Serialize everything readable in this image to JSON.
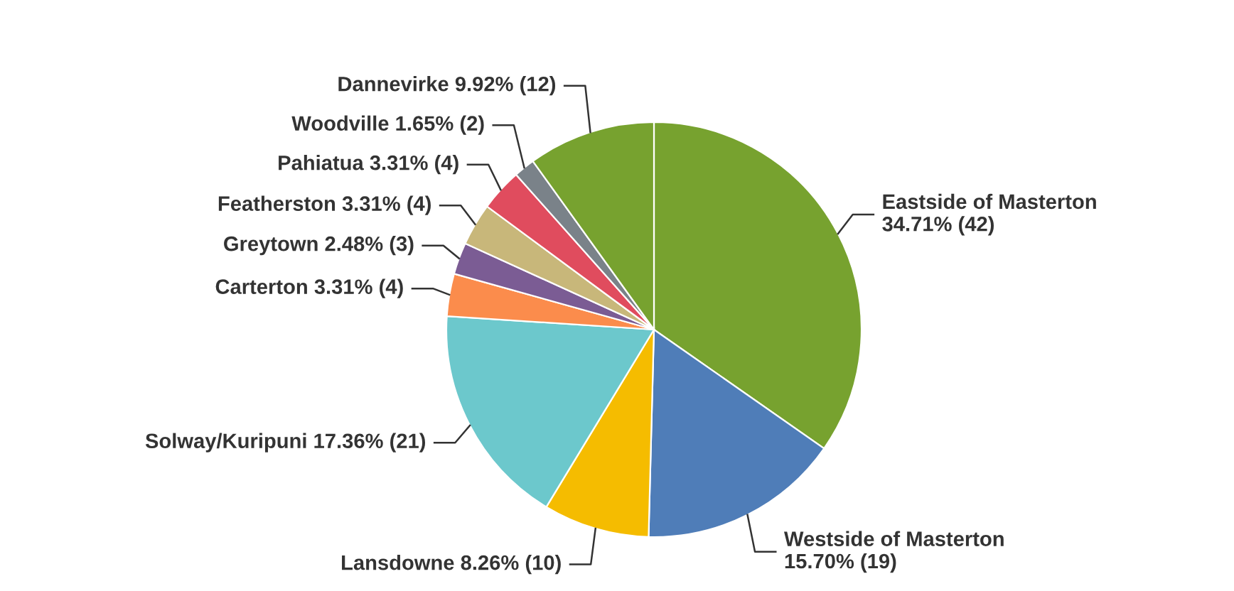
{
  "chart_data": {
    "type": "pie",
    "categories": [
      "Eastside of Masterton",
      "Westside of Masterton",
      "Lansdowne",
      "Solway/Kuripuni",
      "Carterton",
      "Greytown",
      "Featherston",
      "Pahiatua",
      "Woodville",
      "Dannevirke"
    ],
    "values": [
      42,
      19,
      10,
      21,
      4,
      3,
      4,
      4,
      2,
      12
    ],
    "value_labels": [
      "34.71% (42)",
      "15.70% (19)",
      "8.26% (10)",
      "17.36% (21)",
      "3.31% (4)",
      "2.48% (3)",
      "3.31% (4)",
      "3.31% (4)",
      "1.65% (2)",
      "9.92% (12)"
    ],
    "colors": [
      "#77a22f",
      "#4f7db8",
      "#f5bc00",
      "#6cc8cc",
      "#fb8c4c",
      "#7b5c94",
      "#c8b77a",
      "#e04c5e",
      "#7a8289",
      "#77a22f"
    ],
    "legend": false
  }
}
